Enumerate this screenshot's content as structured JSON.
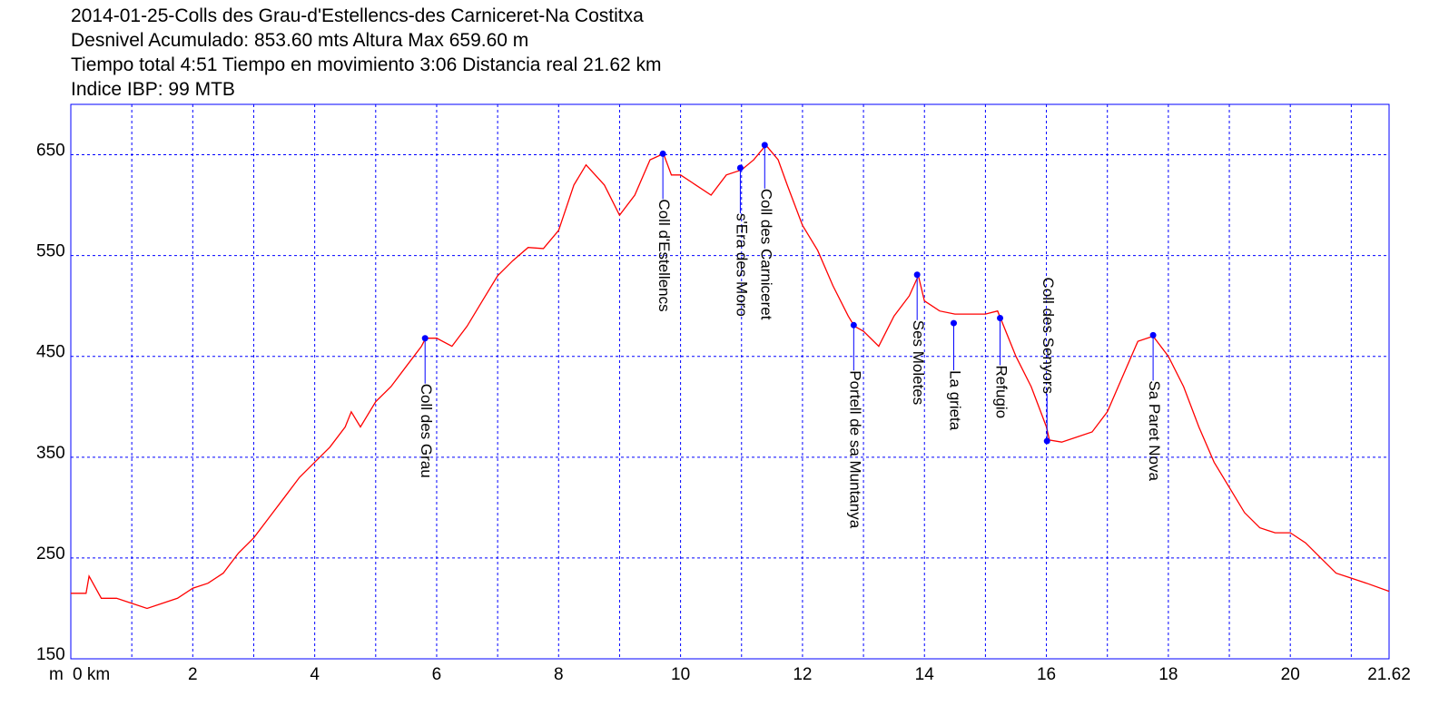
{
  "chart_data": {
    "type": "line",
    "title_lines": [
      "2014-01-25-Colls des Grau-d'Estellencs-des Carniceret-Na Costitxa",
      "Desnivel Acumulado: 853.60 mts  Altura Max 659.60 m",
      "Tiempo total 4:51 Tiempo en movimiento 3:06 Distancia real 21.62 km",
      "Indice IBP: 99 MTB"
    ],
    "y_unit": "m",
    "color": "#ff0000",
    "marker_color": "#0000ff",
    "grid_color": "#0000ff",
    "grid": true,
    "xlim": [
      0,
      21.62
    ],
    "ylim": [
      150,
      700
    ],
    "xticks": [
      {
        "value": 0,
        "label": "0 km"
      },
      2,
      4,
      6,
      8,
      10,
      12,
      14,
      16,
      18,
      20,
      21.62
    ],
    "xgrid": [
      1,
      2,
      3,
      4,
      5,
      6,
      7,
      8,
      9,
      10,
      11,
      12,
      13,
      14,
      15,
      16,
      17,
      18,
      19,
      20,
      21
    ],
    "yticks": [
      150,
      250,
      350,
      450,
      550,
      650
    ],
    "x": [
      0,
      0.25,
      0.3,
      0.5,
      0.75,
      1.0,
      1.25,
      1.5,
      1.75,
      2.0,
      2.25,
      2.5,
      2.75,
      3.0,
      3.25,
      3.5,
      3.75,
      4.0,
      4.25,
      4.5,
      4.6,
      4.75,
      5.0,
      5.25,
      5.5,
      5.75,
      5.82,
      6.0,
      6.25,
      6.5,
      6.75,
      7.0,
      7.25,
      7.5,
      7.75,
      8.0,
      8.25,
      8.45,
      8.75,
      9.0,
      9.25,
      9.5,
      9.72,
      9.85,
      10.0,
      10.25,
      10.5,
      10.75,
      11.0,
      11.2,
      11.4,
      11.6,
      11.75,
      12.0,
      12.25,
      12.5,
      12.75,
      12.85,
      13.0,
      13.25,
      13.5,
      13.75,
      13.9,
      14.0,
      14.25,
      14.5,
      14.75,
      15.0,
      15.2,
      15.5,
      15.75,
      16.0,
      16.05,
      16.25,
      16.5,
      16.75,
      17.0,
      17.25,
      17.5,
      17.75,
      18.0,
      18.25,
      18.5,
      18.75,
      19.0,
      19.25,
      19.5,
      19.75,
      20.0,
      20.25,
      20.5,
      20.75,
      21.0,
      21.25,
      21.62
    ],
    "values": [
      215,
      215,
      232,
      210,
      210,
      205,
      200,
      205,
      210,
      220,
      225,
      235,
      255,
      270,
      290,
      310,
      330,
      345,
      360,
      380,
      395,
      380,
      405,
      420,
      440,
      460,
      468,
      468,
      460,
      480,
      505,
      530,
      545,
      558,
      557,
      575,
      620,
      640,
      620,
      590,
      610,
      645,
      651,
      630,
      630,
      620,
      610,
      630,
      635,
      645,
      659.6,
      645,
      620,
      580,
      555,
      520,
      490,
      480,
      475,
      460,
      490,
      510,
      530,
      505,
      495,
      492,
      492,
      492,
      495,
      450,
      420,
      380,
      367,
      365,
      370,
      375,
      395,
      430,
      465,
      470,
      450,
      420,
      380,
      345,
      320,
      295,
      280,
      275,
      275,
      265,
      250,
      235,
      230,
      225,
      217
    ],
    "waypoints": [
      {
        "name": "Coll des Grau",
        "x": 5.81,
        "y": 468
      },
      {
        "name": "Coll d'Estellencs",
        "x": 9.71,
        "y": 651
      },
      {
        "name": "s'Era des Moro",
        "x": 10.98,
        "y": 637
      },
      {
        "name": "Coll des Carniceret",
        "x": 11.38,
        "y": 659.6
      },
      {
        "name": "Portell de sa Muntanya",
        "x": 12.84,
        "y": 481
      },
      {
        "name": "Ses Moletes",
        "x": 13.88,
        "y": 531
      },
      {
        "name": "La grieta",
        "x": 14.48,
        "y": 483
      },
      {
        "name": "Refugio",
        "x": 15.24,
        "y": 488
      },
      {
        "name": "Coll des Senyors",
        "x": 16.01,
        "y": 366
      },
      {
        "name": "Sa Paret Nova",
        "x": 17.75,
        "y": 471
      }
    ]
  }
}
